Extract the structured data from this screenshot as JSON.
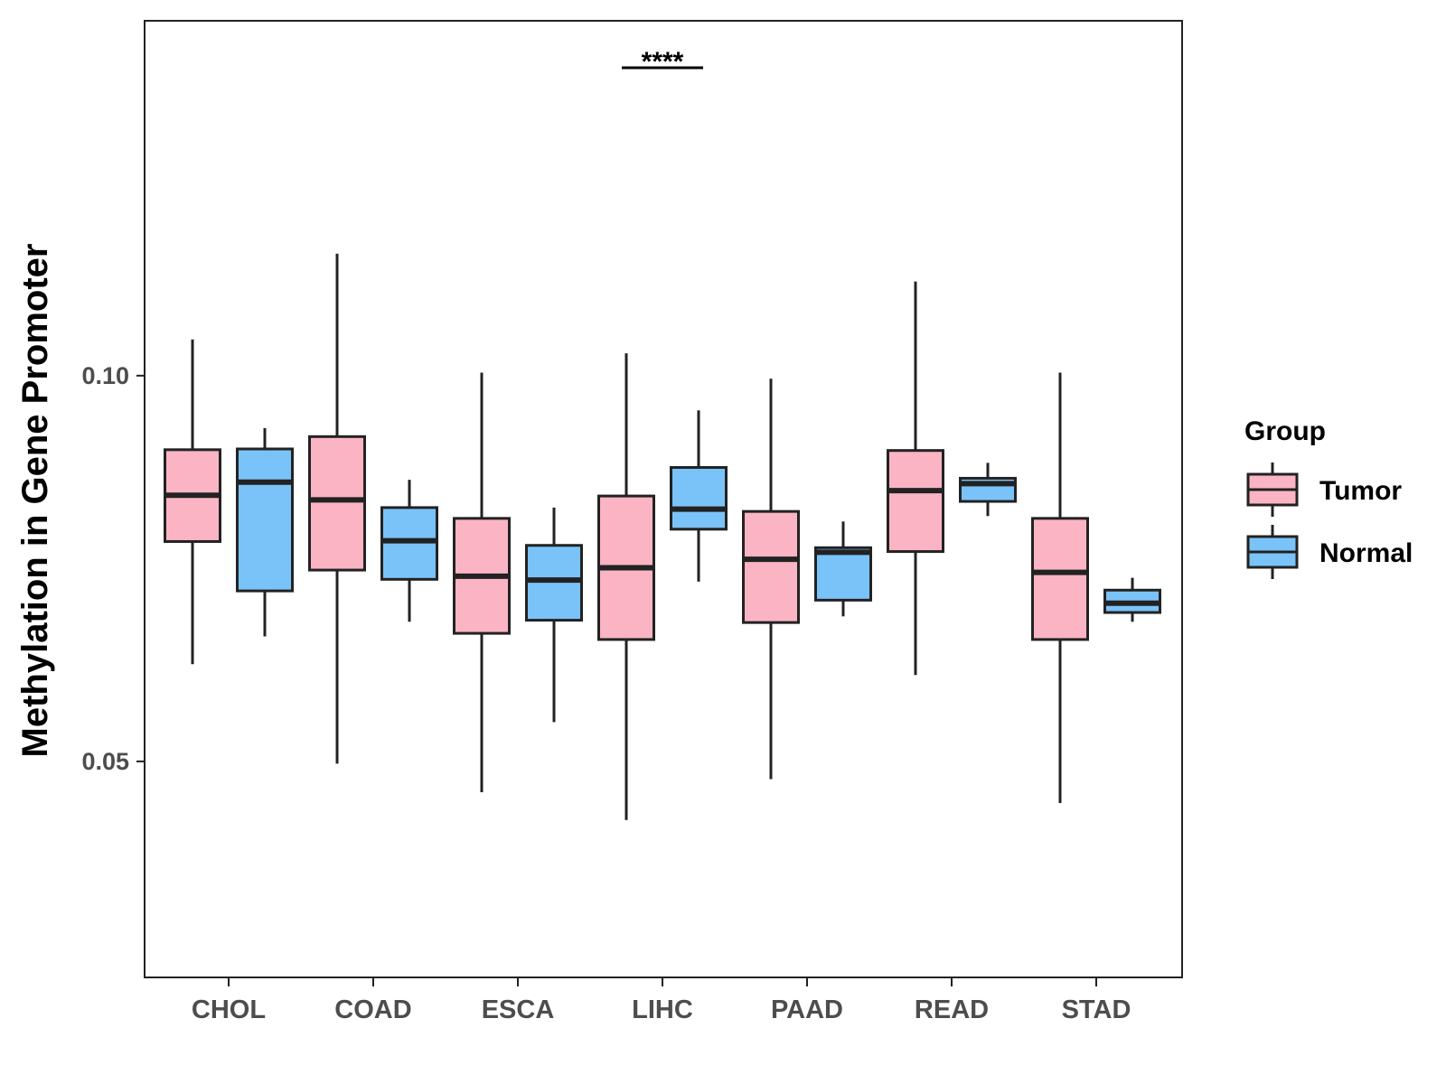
{
  "chart_data": {
    "type": "boxplot",
    "ylabel": "Methylation in Gene Promoter",
    "xlabel": "",
    "ylim": [
      0.022,
      0.146
    ],
    "yticks": [
      0.05,
      0.1
    ],
    "ytick_labels": [
      "0.05",
      "0.10"
    ],
    "categories": [
      "CHOL",
      "COAD",
      "ESCA",
      "LIHC",
      "PAAD",
      "READ",
      "STAD"
    ],
    "legend": {
      "title": "Group",
      "position": "right",
      "entries": [
        {
          "name": "Tumor",
          "color": "#FBB4C4"
        },
        {
          "name": "Normal",
          "color": "#7AC3F8"
        }
      ]
    },
    "series": [
      {
        "name": "Tumor",
        "color": "#FBB4C4",
        "boxes": [
          {
            "category": "CHOL",
            "min": 0.0626,
            "q1": 0.0785,
            "median": 0.0845,
            "q3": 0.0904,
            "max": 0.1047
          },
          {
            "category": "COAD",
            "min": 0.0497,
            "q1": 0.0748,
            "median": 0.0839,
            "q3": 0.0921,
            "max": 0.1158
          },
          {
            "category": "ESCA",
            "min": 0.046,
            "q1": 0.0666,
            "median": 0.074,
            "q3": 0.0815,
            "max": 0.1004
          },
          {
            "category": "LIHC",
            "min": 0.0424,
            "q1": 0.0658,
            "median": 0.0751,
            "q3": 0.0844,
            "max": 0.1029
          },
          {
            "category": "PAAD",
            "min": 0.0477,
            "q1": 0.068,
            "median": 0.0762,
            "q3": 0.0824,
            "max": 0.0996
          },
          {
            "category": "READ",
            "min": 0.0612,
            "q1": 0.0772,
            "median": 0.0851,
            "q3": 0.0903,
            "max": 0.1122
          },
          {
            "category": "STAD",
            "min": 0.0446,
            "q1": 0.0658,
            "median": 0.0745,
            "q3": 0.0815,
            "max": 0.1004
          }
        ]
      },
      {
        "name": "Normal",
        "color": "#7AC3F8",
        "boxes": [
          {
            "category": "CHOL",
            "min": 0.0662,
            "q1": 0.0721,
            "median": 0.0862,
            "q3": 0.0905,
            "max": 0.0932
          },
          {
            "category": "COAD",
            "min": 0.0681,
            "q1": 0.0736,
            "median": 0.0786,
            "q3": 0.0829,
            "max": 0.0865
          },
          {
            "category": "ESCA",
            "min": 0.0551,
            "q1": 0.0683,
            "median": 0.0735,
            "q3": 0.078,
            "max": 0.0829
          },
          {
            "category": "LIHC",
            "min": 0.0733,
            "q1": 0.0801,
            "median": 0.0827,
            "q3": 0.0881,
            "max": 0.0955
          },
          {
            "category": "PAAD",
            "min": 0.0688,
            "q1": 0.0709,
            "median": 0.0771,
            "q3": 0.0777,
            "max": 0.0811
          },
          {
            "category": "READ",
            "min": 0.0818,
            "q1": 0.0837,
            "median": 0.086,
            "q3": 0.0867,
            "max": 0.0887
          },
          {
            "category": "STAD",
            "min": 0.0681,
            "q1": 0.0693,
            "median": 0.0705,
            "q3": 0.0722,
            "max": 0.0738
          }
        ]
      }
    ],
    "annotations": [
      {
        "text": "****",
        "category": "LIHC"
      }
    ]
  }
}
